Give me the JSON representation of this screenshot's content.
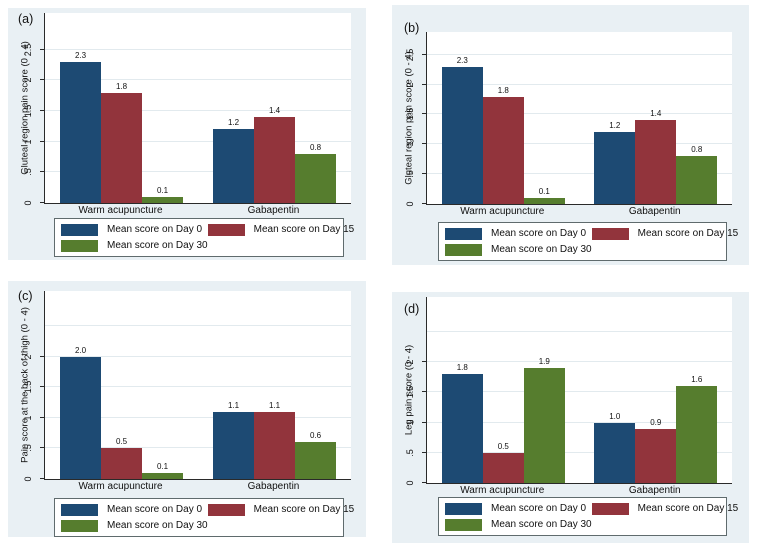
{
  "figure": {
    "description": "Four Stata-style grouped bar chart panels comparing mean pain scores for Warm acupuncture vs Gabapentin on Day 0, Day 15 and Day 30",
    "colors": {
      "panel_background": "#e9f0f4",
      "plot_background": "#ffffff",
      "gridline": "#e2eaee",
      "axis": "#2a2a2a",
      "day0_blue": "#1d4a73",
      "day15_maroon": "#92343c",
      "day30_green": "#567d2e"
    }
  },
  "chart_data": [
    {
      "id": "a",
      "tag": "(a)",
      "type": "bar",
      "title": "",
      "ylabel": "Gluteal region pain score (0 - 4)",
      "xlabel": "",
      "categories": [
        "Warm acupuncture",
        "Gabapentin"
      ],
      "series": [
        {
          "name": "Mean score on Day 0",
          "color": "#1d4a73",
          "values": [
            "2.3",
            "1.2"
          ]
        },
        {
          "name": "Mean score on Day 15",
          "color": "#92343c",
          "values": [
            "1.8",
            "1.4"
          ]
        },
        {
          "name": "Mean score on Day 30",
          "color": "#567d2e",
          "values": [
            "0.1",
            "0.8"
          ]
        }
      ],
      "ytick_vals": [
        0,
        0.5,
        1,
        1.5,
        2,
        2.5
      ],
      "ytick_labels": [
        "0",
        ".5",
        "1",
        "1.5",
        "2",
        "2.5"
      ],
      "gridlines": [
        0.5,
        1,
        1.5,
        2,
        2.5
      ],
      "ylim": [
        0,
        3.1
      ],
      "grid": true,
      "legend_position": "bottom"
    },
    {
      "id": "b",
      "tag": "(b)",
      "type": "bar",
      "title": "",
      "ylabel": "Gluteal region pain score (0 - 4)",
      "xlabel": "",
      "categories": [
        "Warm acupuncture",
        "Gabapentin"
      ],
      "series": [
        {
          "name": "Mean score on Day 0",
          "color": "#1d4a73",
          "values": [
            "2.3",
            "1.2"
          ]
        },
        {
          "name": "Mean score on Day 15",
          "color": "#92343c",
          "values": [
            "1.8",
            "1.4"
          ]
        },
        {
          "name": "Mean score on Day 30",
          "color": "#567d2e",
          "values": [
            "0.1",
            "0.8"
          ]
        }
      ],
      "ytick_vals": [
        0,
        0.5,
        1,
        1.5,
        2,
        2.5
      ],
      "ytick_labels": [
        "0",
        ".5",
        "1",
        "1.5",
        "2",
        "2.5"
      ],
      "gridlines": [
        0.5,
        1,
        1.5,
        2,
        2.5
      ],
      "ylim": [
        0,
        2.88
      ],
      "grid": true,
      "legend_position": "bottom"
    },
    {
      "id": "c",
      "tag": "(c)",
      "type": "bar",
      "title": "",
      "ylabel": "Pain score at the back of thigh (0 - 4)",
      "xlabel": "",
      "categories": [
        "Warm acupuncture",
        "Gabapentin"
      ],
      "series": [
        {
          "name": "Mean score on Day 0",
          "color": "#1d4a73",
          "values": [
            "2.0",
            "1.1"
          ]
        },
        {
          "name": "Mean score on Day 15",
          "color": "#92343c",
          "values": [
            "0.5",
            "1.1"
          ]
        },
        {
          "name": "Mean score on Day 30",
          "color": "#567d2e",
          "values": [
            "0.1",
            "0.6"
          ]
        }
      ],
      "ytick_vals": [
        0,
        0.5,
        1,
        1.5,
        2
      ],
      "ytick_labels": [
        "0",
        ".5",
        "1",
        "1.5",
        "2"
      ],
      "gridlines": [
        0.5,
        1,
        1.5,
        2,
        2.5
      ],
      "ylim": [
        0,
        3.08
      ],
      "grid": true,
      "legend_position": "bottom"
    },
    {
      "id": "d",
      "tag": "(d)",
      "type": "bar",
      "title": "",
      "ylabel": "Leg pain score (0 - 4)",
      "xlabel": "",
      "categories": [
        "Warm acupuncture",
        "Gabapentin"
      ],
      "series": [
        {
          "name": "Mean score on Day 0",
          "color": "#1d4a73",
          "values": [
            "1.8",
            "1.0"
          ]
        },
        {
          "name": "Mean score on Day 15",
          "color": "#92343c",
          "values": [
            "0.5",
            "0.9"
          ]
        },
        {
          "name": "Mean score on Day 30",
          "color": "#567d2e",
          "values": [
            "1.9",
            "1.6"
          ]
        }
      ],
      "ytick_vals": [
        0,
        0.5,
        1,
        1.5,
        2
      ],
      "ytick_labels": [
        "0",
        ".5",
        "1",
        "1.5",
        "2"
      ],
      "gridlines": [
        0.5,
        1,
        1.5,
        2,
        2.5
      ],
      "ylim": [
        0,
        3.08
      ],
      "grid": true,
      "legend_position": "bottom"
    }
  ]
}
